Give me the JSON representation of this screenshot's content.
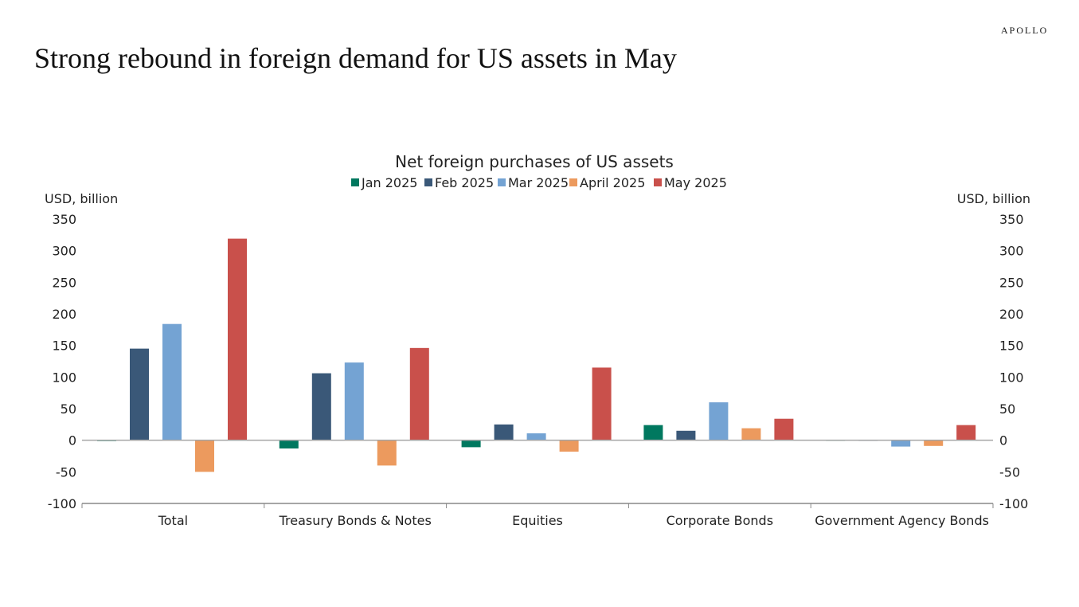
{
  "header": {
    "title": "Strong rebound in foreign demand for US assets in May",
    "brand": "APOLLO"
  },
  "chart_data": {
    "type": "bar",
    "title": "Net foreign purchases of US assets",
    "ylabel_left": "USD, billion",
    "ylabel_right": "USD, billion",
    "ylim": [
      -100,
      350
    ],
    "yticks": [
      -100,
      -50,
      0,
      50,
      100,
      150,
      200,
      250,
      300,
      350
    ],
    "legend_position": "top",
    "categories": [
      "Total",
      "Treasury Bonds & Notes",
      "Equities",
      "Corporate Bonds",
      "Government Agency Bonds"
    ],
    "series": [
      {
        "name": "Jan 2025",
        "color": "#00785f",
        "values": [
          -1,
          -13,
          -11,
          24,
          0.5
        ]
      },
      {
        "name": "Feb 2025",
        "color": "#3a5878",
        "values": [
          145,
          106,
          25,
          15,
          0.5
        ]
      },
      {
        "name": "Mar 2025",
        "color": "#74a3d3",
        "values": [
          184,
          123,
          11,
          60,
          -10
        ]
      },
      {
        "name": "April 2025",
        "color": "#ec9a5e",
        "values": [
          -50,
          -40,
          -18,
          19,
          -9
        ]
      },
      {
        "name": "May 2025",
        "color": "#c9504b",
        "values": [
          319,
          146,
          115,
          34,
          24
        ]
      }
    ]
  }
}
